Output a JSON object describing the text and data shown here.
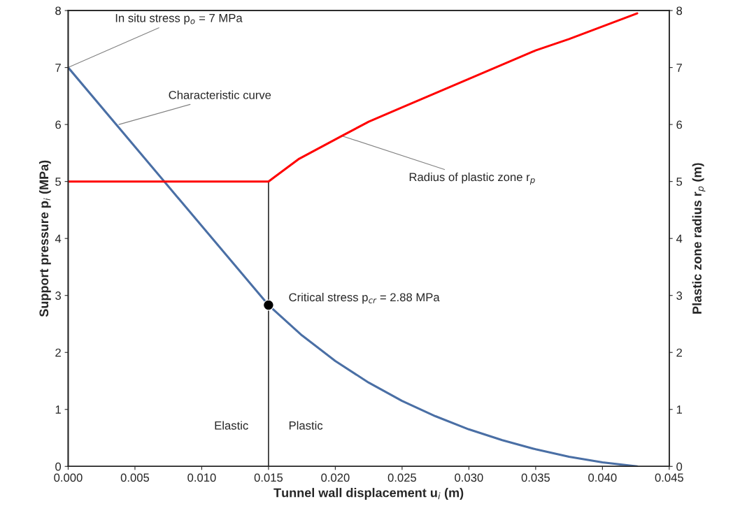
{
  "chart_data": {
    "type": "line",
    "xlabel": "Tunnel wall displacement u$_{i}$ (m)",
    "ylabel": "Support pressure p$_{i}$ (MPa)",
    "y2label": "Plastic zone radius r$_{p}$ (m)",
    "series": [
      {
        "color": "#4a6fa5",
        "x": [
          0,
          0.015,
          0.0175,
          0.02,
          0.0225,
          0.025,
          0.0275,
          0.03,
          0.0325,
          0.035,
          0.0375,
          0.04,
          0.0426
        ],
        "values": [
          7,
          2.83,
          2.3,
          1.85,
          1.47,
          1.15,
          0.88,
          0.65,
          0.46,
          0.3,
          0.17,
          0.07,
          0
        ]
      },
      {
        "color": "#ff0000",
        "axis": "y2",
        "x": [
          0,
          0.015,
          0.0173,
          0.0205,
          0.0225,
          0.025,
          0.03,
          0.035,
          0.0375,
          0.0426
        ],
        "values": [
          5,
          5,
          5.4,
          5.8,
          6.05,
          6.3,
          6.8,
          7.3,
          7.5,
          7.95
        ]
      },
      {
        "color": "#000000",
        "x": [
          0.015,
          0.015
        ],
        "values": [
          0,
          5
        ]
      },
      {
        "type": "scatter",
        "color": "#000000",
        "marker": "circle",
        "x": [
          0.015
        ],
        "values": [
          2.83
        ]
      }
    ],
    "annotations": [
      {
        "text": "In situ stress p$_{o}$ = 7 MPa",
        "x": 0,
        "y": 7
      },
      {
        "text": "Characteristic curve",
        "x": 0.0038,
        "y": 6.0
      },
      {
        "text": "Radius of plastic zone r$_{p}$",
        "x": 0.0205,
        "y": 5.8
      },
      {
        "text": "Critical stress p$_{cr}$ = 2.88 MPa",
        "x": 0.015,
        "y": 2.83
      },
      "Elastic",
      "Plastic"
    ],
    "xlim": [
      0,
      0.045
    ],
    "xticks": [
      {
        "value": 0,
        "label": "0.000"
      },
      {
        "value": 0.005,
        "label": "0.005"
      },
      {
        "value": 0.01,
        "label": "0.010"
      },
      {
        "value": 0.015,
        "label": "0.015"
      },
      {
        "value": 0.02,
        "label": "0.020"
      },
      {
        "value": 0.025,
        "label": "0.025"
      },
      {
        "value": 0.03,
        "label": "0.030"
      },
      {
        "value": 0.035,
        "label": "0.035"
      },
      {
        "value": 0.04,
        "label": "0.040"
      },
      {
        "value": 0.045,
        "label": "0.045"
      }
    ],
    "ylim": [
      0,
      8
    ],
    "yticks": [
      0,
      1,
      2,
      3,
      4,
      5,
      6,
      7,
      8
    ],
    "y2lim": [
      0,
      8
    ],
    "y2ticks": [
      0,
      1,
      2,
      3,
      4,
      5,
      6,
      7,
      8
    ],
    "grid": false,
    "legend": false
  }
}
